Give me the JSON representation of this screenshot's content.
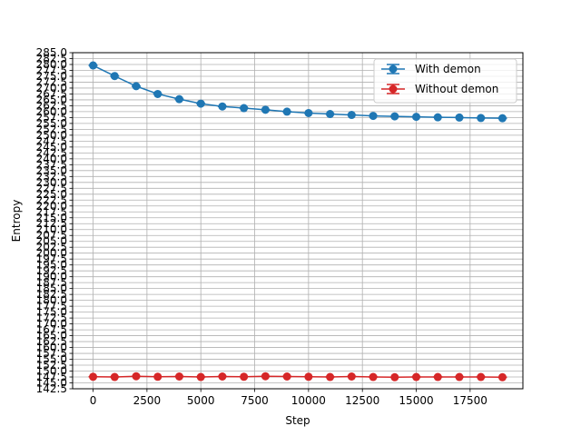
{
  "chart_data": {
    "type": "line",
    "title": "",
    "xlabel": "Step",
    "ylabel": "Entropy",
    "xlim": [
      -950,
      19950
    ],
    "ylim": [
      142.5,
      285.0
    ],
    "ytick_step": 2.5,
    "xticks": [
      0,
      2500,
      5000,
      7500,
      10000,
      12500,
      15000,
      17500
    ],
    "grid": true,
    "legend": {
      "placement": "top-right"
    },
    "x": [
      0,
      1000,
      2000,
      3000,
      4000,
      5000,
      6000,
      7000,
      8000,
      9000,
      10000,
      11000,
      12000,
      13000,
      14000,
      15000,
      16000,
      17000,
      18000,
      19000
    ],
    "series": [
      {
        "name": "With demon",
        "color": "#1f77b4",
        "values": [
          279.6,
          275.1,
          270.8,
          267.5,
          265.3,
          263.4,
          262.2,
          261.5,
          260.8,
          260.0,
          259.4,
          259.0,
          258.6,
          258.2,
          258.0,
          257.8,
          257.6,
          257.5,
          257.3,
          257.2
        ]
      },
      {
        "name": "Without demon",
        "color": "#d62728",
        "values": [
          147.6,
          147.5,
          147.8,
          147.6,
          147.7,
          147.5,
          147.7,
          147.6,
          147.8,
          147.7,
          147.6,
          147.5,
          147.7,
          147.5,
          147.4,
          147.5,
          147.5,
          147.5,
          147.5,
          147.4
        ]
      }
    ]
  }
}
